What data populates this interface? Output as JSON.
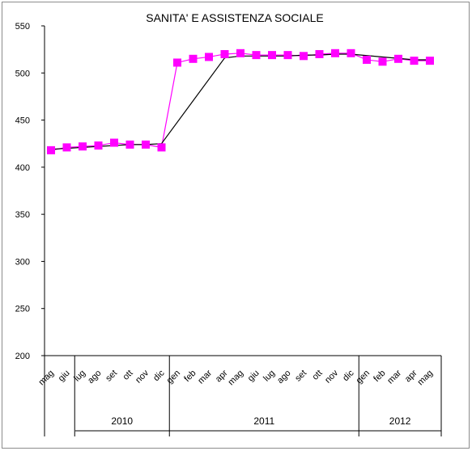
{
  "chart_data": {
    "type": "line",
    "title": "SANITA' E ASSISTENZA SOCIALE",
    "xlabel": "",
    "ylabel": "",
    "ylim": [
      200,
      550
    ],
    "yticks": [
      200,
      250,
      300,
      350,
      400,
      450,
      500,
      550
    ],
    "categories": [
      "mag",
      "giu",
      "lug",
      "ago",
      "set",
      "ott",
      "nov",
      "dic",
      "gen",
      "feb",
      "mar",
      "apr",
      "mag",
      "giu",
      "lug",
      "ago",
      "set",
      "ott",
      "nov",
      "dic",
      "gen",
      "feb",
      "mar",
      "apr",
      "mag"
    ],
    "year_groups": [
      {
        "label": "",
        "count": 2
      },
      {
        "label": "2010",
        "count": 6
      },
      {
        "label": "2011",
        "count": 12
      },
      {
        "label": "2012",
        "count": 5
      }
    ],
    "series": [
      {
        "color": "#ff00ff",
        "marker": "square",
        "values": [
          418,
          421,
          422,
          423,
          426,
          424,
          424,
          421,
          511,
          515,
          517,
          520,
          521,
          519,
          519,
          519,
          518,
          520,
          521,
          521,
          514,
          512,
          515,
          513,
          513
        ]
      },
      {
        "color": "#000000",
        "marker": "none",
        "values": [
          419,
          420,
          421,
          422,
          423,
          424,
          424,
          425,
          null,
          null,
          null,
          516,
          518,
          518,
          518,
          518,
          519,
          519,
          520,
          520,
          null,
          null,
          null,
          514,
          514
        ]
      }
    ],
    "grid": false,
    "legend": "none"
  }
}
